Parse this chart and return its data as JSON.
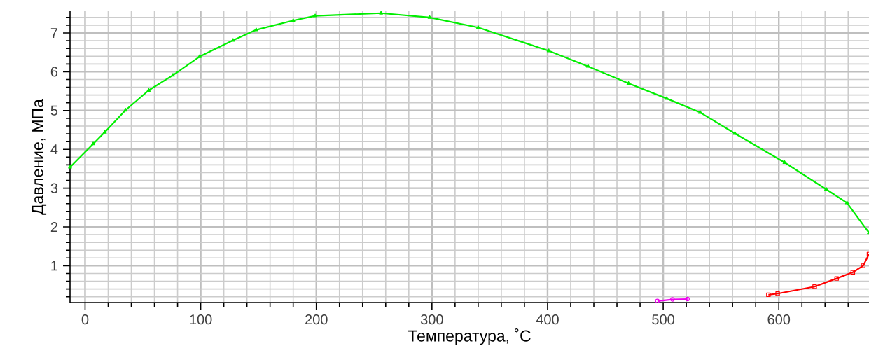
{
  "chart_data": {
    "type": "line",
    "xlabel": "Температура, ˚C",
    "ylabel": "Давление, МПа",
    "xlim": [
      -13,
      678
    ],
    "ylim": [
      0.05,
      7.56
    ],
    "xticks": [
      0,
      {
        "value": 20,
        "label": null
      },
      {
        "value": 40,
        "label": null
      },
      {
        "value": 60,
        "label": null
      },
      {
        "value": 80,
        "label": null
      },
      100,
      {
        "value": 120,
        "label": null
      },
      {
        "value": 140,
        "label": null
      },
      {
        "value": 160,
        "label": null
      },
      {
        "value": 180,
        "label": null
      },
      200,
      {
        "value": 220,
        "label": null
      },
      {
        "value": 240,
        "label": null
      },
      {
        "value": 260,
        "label": null
      },
      {
        "value": 280,
        "label": null
      },
      300,
      {
        "value": 320,
        "label": null
      },
      {
        "value": 340,
        "label": null
      },
      {
        "value": 360,
        "label": null
      },
      {
        "value": 380,
        "label": null
      },
      400,
      {
        "value": 420,
        "label": null
      },
      {
        "value": 440,
        "label": null
      },
      {
        "value": 460,
        "label": null
      },
      {
        "value": 480,
        "label": null
      },
      500,
      {
        "value": 520,
        "label": null
      },
      {
        "value": 540,
        "label": null
      },
      {
        "value": 560,
        "label": null
      },
      {
        "value": 580,
        "label": null
      },
      600,
      {
        "value": 620,
        "label": null
      },
      {
        "value": 640,
        "label": null
      },
      {
        "value": 660,
        "label": null
      }
    ],
    "yticks": [
      {
        "value": 0.2,
        "label": null
      },
      {
        "value": 0.4,
        "label": null
      },
      {
        "value": 0.6,
        "label": null
      },
      {
        "value": 0.8,
        "label": null
      },
      1,
      {
        "value": 1.2,
        "label": null
      },
      {
        "value": 1.4,
        "label": null
      },
      {
        "value": 1.6,
        "label": null
      },
      {
        "value": 1.8,
        "label": null
      },
      2,
      {
        "value": 2.2,
        "label": null
      },
      {
        "value": 2.4,
        "label": null
      },
      {
        "value": 2.6,
        "label": null
      },
      {
        "value": 2.8,
        "label": null
      },
      3,
      {
        "value": 3.2,
        "label": null
      },
      {
        "value": 3.4,
        "label": null
      },
      {
        "value": 3.6,
        "label": null
      },
      {
        "value": 3.8,
        "label": null
      },
      4,
      {
        "value": 4.2,
        "label": null
      },
      {
        "value": 4.4,
        "label": null
      },
      {
        "value": 4.6,
        "label": null
      },
      {
        "value": 4.8,
        "label": null
      },
      5,
      {
        "value": 5.2,
        "label": null
      },
      {
        "value": 5.4,
        "label": null
      },
      {
        "value": 5.6,
        "label": null
      },
      {
        "value": 5.8,
        "label": null
      },
      6,
      {
        "value": 6.2,
        "label": null
      },
      {
        "value": 6.4,
        "label": null
      },
      {
        "value": 6.6,
        "label": null
      },
      {
        "value": 6.8,
        "label": null
      },
      7,
      {
        "value": 7.2,
        "label": null
      },
      {
        "value": 7.4,
        "label": null
      }
    ],
    "grid": true,
    "line_style": "solid",
    "series": [
      {
        "color": "#00ee00",
        "marker": "triangle",
        "x": [
          -13,
          7,
          17,
          35,
          55,
          76,
          99,
          128,
          148,
          180,
          199,
          256,
          298,
          340,
          401,
          435,
          470,
          503,
          532,
          562,
          605,
          641,
          659,
          678
        ],
        "values": [
          3.54,
          4.14,
          4.44,
          5.01,
          5.52,
          5.91,
          6.39,
          6.81,
          7.08,
          7.32,
          7.44,
          7.51,
          7.4,
          7.14,
          6.54,
          6.14,
          5.7,
          5.31,
          4.95,
          4.41,
          3.66,
          2.97,
          2.62,
          1.85
        ]
      },
      {
        "color": "#ff0000",
        "marker": "square",
        "x": [
          591,
          599,
          631,
          650,
          664,
          673,
          678
        ],
        "values": [
          0.25,
          0.28,
          0.46,
          0.67,
          0.83,
          1.0,
          1.3
        ]
      },
      {
        "color": "#ee00ee",
        "marker": "circle",
        "x": [
          495,
          508,
          521
        ],
        "values": [
          0.09,
          0.13,
          0.14
        ]
      }
    ]
  }
}
